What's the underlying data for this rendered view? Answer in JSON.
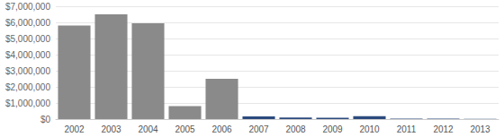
{
  "chart_data": {
    "type": "bar",
    "categories": [
      "2002",
      "2003",
      "2004",
      "2005",
      "2006",
      "2007",
      "2008",
      "2009",
      "2010",
      "2011",
      "2012",
      "2013"
    ],
    "values": [
      5800000,
      6500000,
      5950000,
      800000,
      2500000,
      170000,
      100000,
      90000,
      180000,
      30000,
      25000,
      20000
    ],
    "colors": [
      "#8a8a8a",
      "#8a8a8a",
      "#8a8a8a",
      "#8a8a8a",
      "#8a8a8a",
      "#2b4a7e",
      "#2b4a7e",
      "#2b4a7e",
      "#2b4a7e",
      "#2b4a7e",
      "#2b4a7e",
      "#2b4a7e"
    ],
    "ylim": [
      0,
      7000000
    ],
    "yticks": [
      {
        "value": 0,
        "label": "$0"
      },
      {
        "value": 1000000,
        "label": "$1,000,000"
      },
      {
        "value": 2000000,
        "label": "$2,000,000"
      },
      {
        "value": 3000000,
        "label": "$3,000,000"
      },
      {
        "value": 4000000,
        "label": "$4,000,000"
      },
      {
        "value": 5000000,
        "label": "$5,000,000"
      },
      {
        "value": 6000000,
        "label": "$6,000,000"
      },
      {
        "value": 7000000,
        "label": "$7,000,000"
      }
    ],
    "grid": true
  }
}
